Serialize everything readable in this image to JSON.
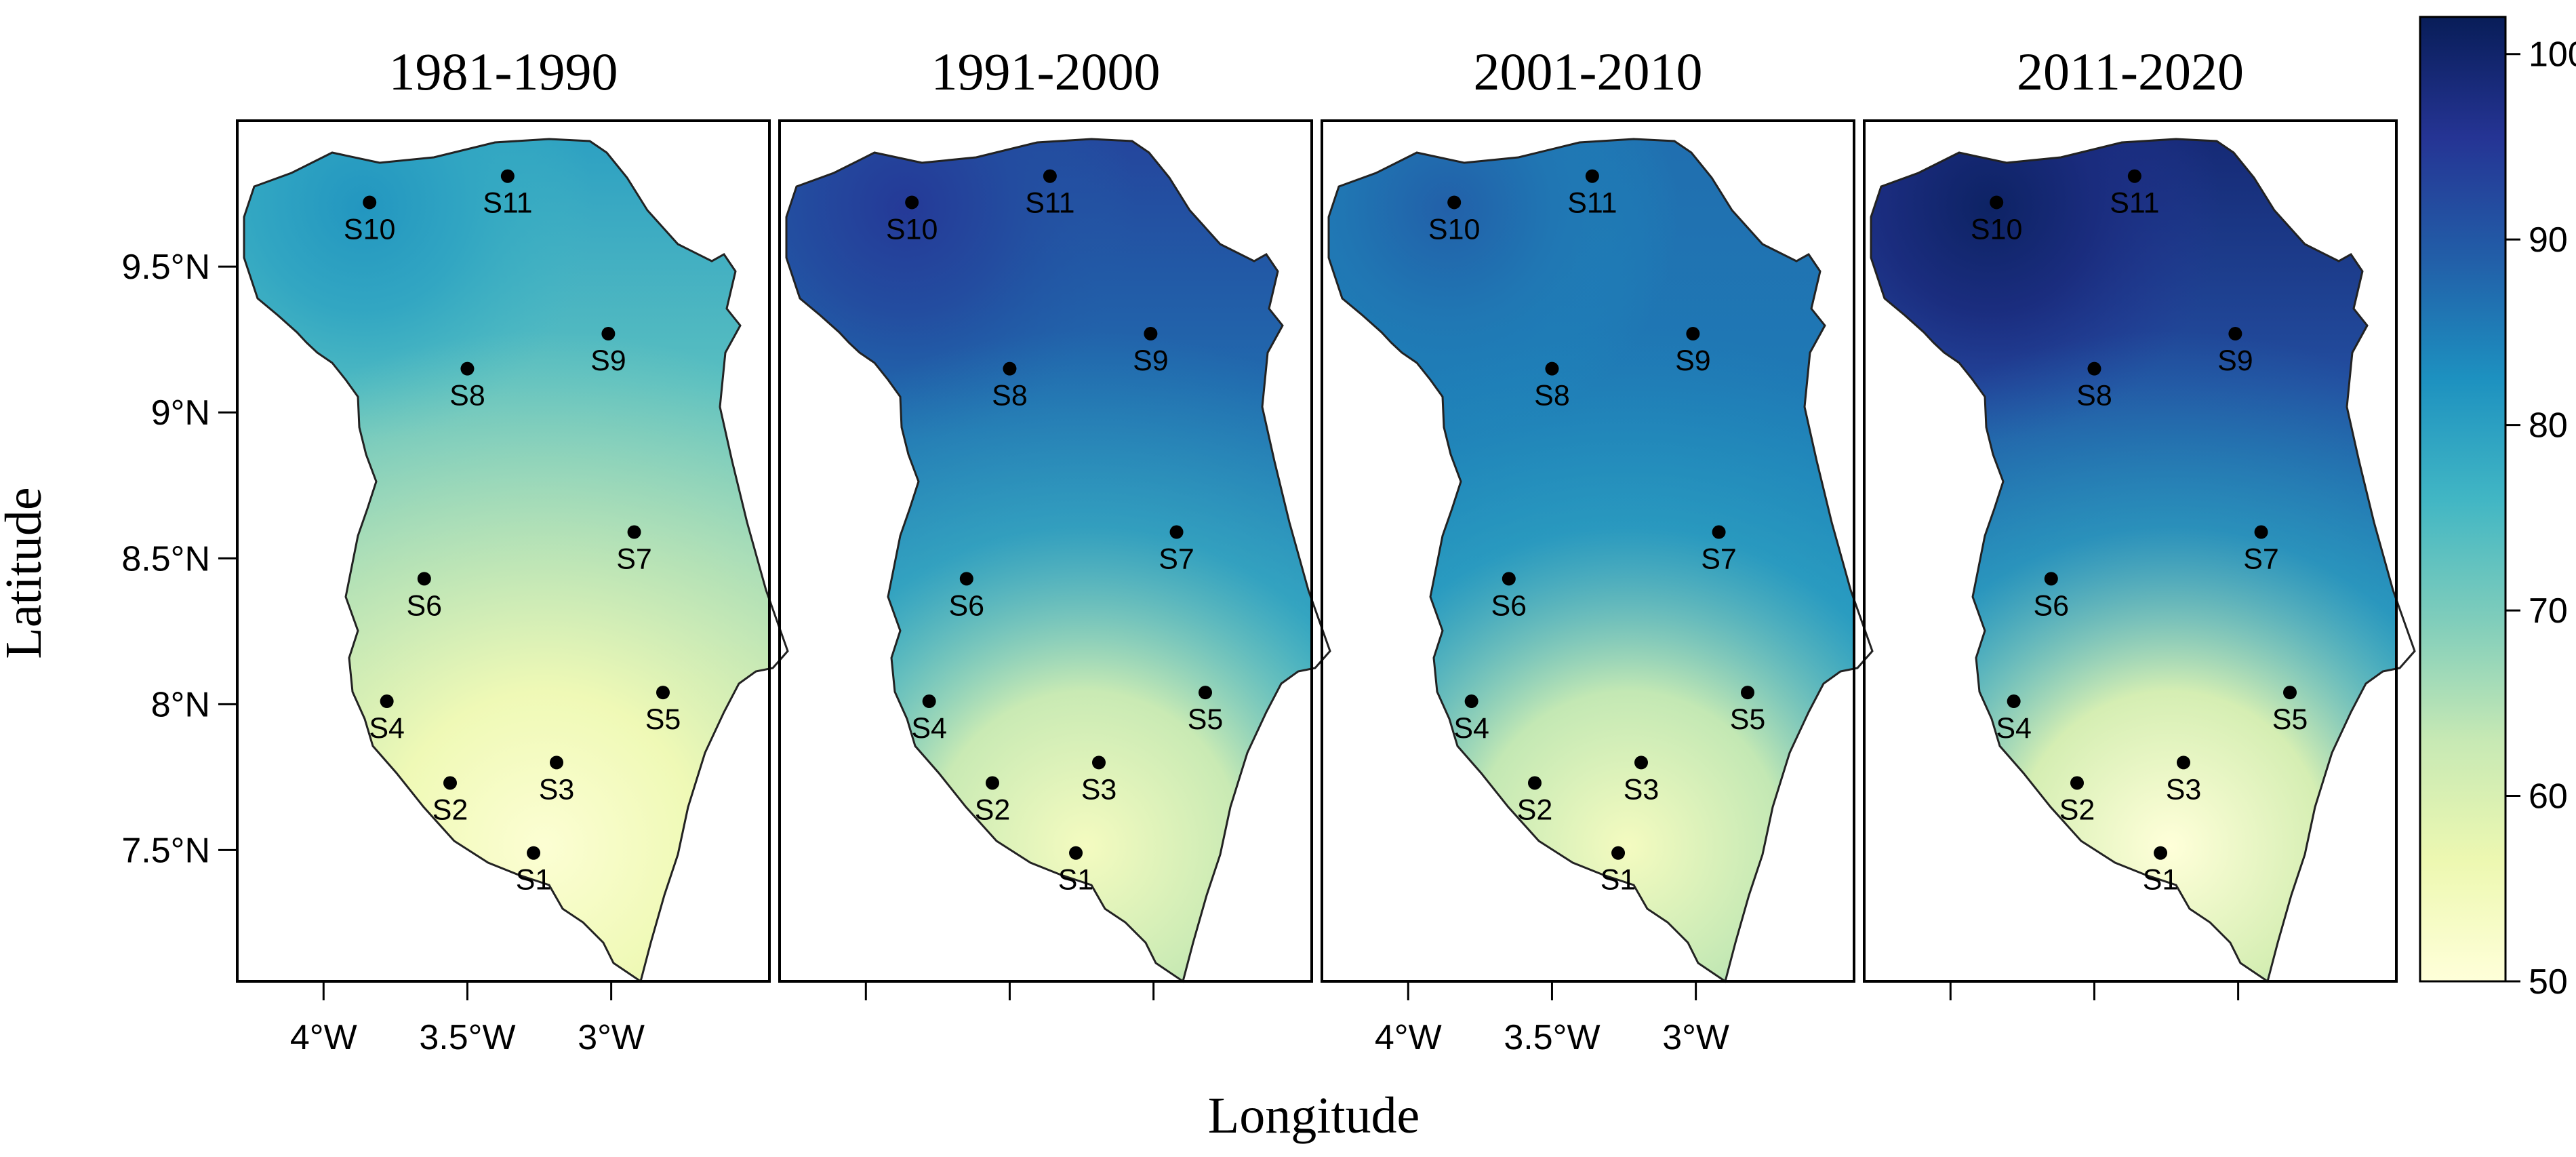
{
  "chart_data": {
    "type": "heatmap",
    "panels": [
      {
        "title": "1981-1990",
        "base": 65,
        "south_low": 51,
        "north_peak": 82
      },
      {
        "title": "1991-2000",
        "base": 80,
        "south_low": 54,
        "north_peak": 95
      },
      {
        "title": "2001-2010",
        "base": 82,
        "south_low": 54,
        "north_peak": 89
      },
      {
        "title": "2011-2020",
        "base": 82,
        "south_low": 50,
        "north_peak": 101
      }
    ],
    "xlabel": "Longitude",
    "ylabel": "Latitude",
    "x_ticks": [
      "4°W",
      "3.5°W",
      "3°W"
    ],
    "x_tick_values": [
      -4.0,
      -3.5,
      -3.0
    ],
    "y_ticks": [
      "9.5°N",
      "9°N",
      "8.5°N",
      "8°N",
      "7.5°N"
    ],
    "y_tick_values": [
      9.5,
      9.0,
      8.5,
      8.0,
      7.5
    ],
    "xlim": [
      -4.3,
      -2.45
    ],
    "ylim": [
      7.05,
      10.0
    ],
    "stations": [
      {
        "name": "S1",
        "lon": -3.27,
        "lat": 7.49
      },
      {
        "name": "S2",
        "lon": -3.56,
        "lat": 7.73
      },
      {
        "name": "S3",
        "lon": -3.19,
        "lat": 7.8
      },
      {
        "name": "S4",
        "lon": -3.78,
        "lat": 8.01
      },
      {
        "name": "S5",
        "lon": -2.82,
        "lat": 8.04
      },
      {
        "name": "S6",
        "lon": -3.65,
        "lat": 8.43
      },
      {
        "name": "S7",
        "lon": -2.92,
        "lat": 8.59
      },
      {
        "name": "S8",
        "lon": -3.5,
        "lat": 9.15
      },
      {
        "name": "S9",
        "lon": -3.01,
        "lat": 9.27
      },
      {
        "name": "S10",
        "lon": -3.84,
        "lat": 9.72
      },
      {
        "name": "S11",
        "lon": -3.36,
        "lat": 9.81
      }
    ],
    "colorbar": {
      "min": 50,
      "max": 102,
      "ticks": [
        "100",
        "90",
        "80",
        "70",
        "60",
        "50"
      ],
      "tick_values": [
        100,
        90,
        80,
        70,
        60,
        50
      ],
      "colors": [
        "#ffffd9",
        "#edf8b1",
        "#c7e9b4",
        "#7fcdbb",
        "#41b6c4",
        "#1d91c0",
        "#225ea8",
        "#253494",
        "#081d58"
      ]
    }
  }
}
